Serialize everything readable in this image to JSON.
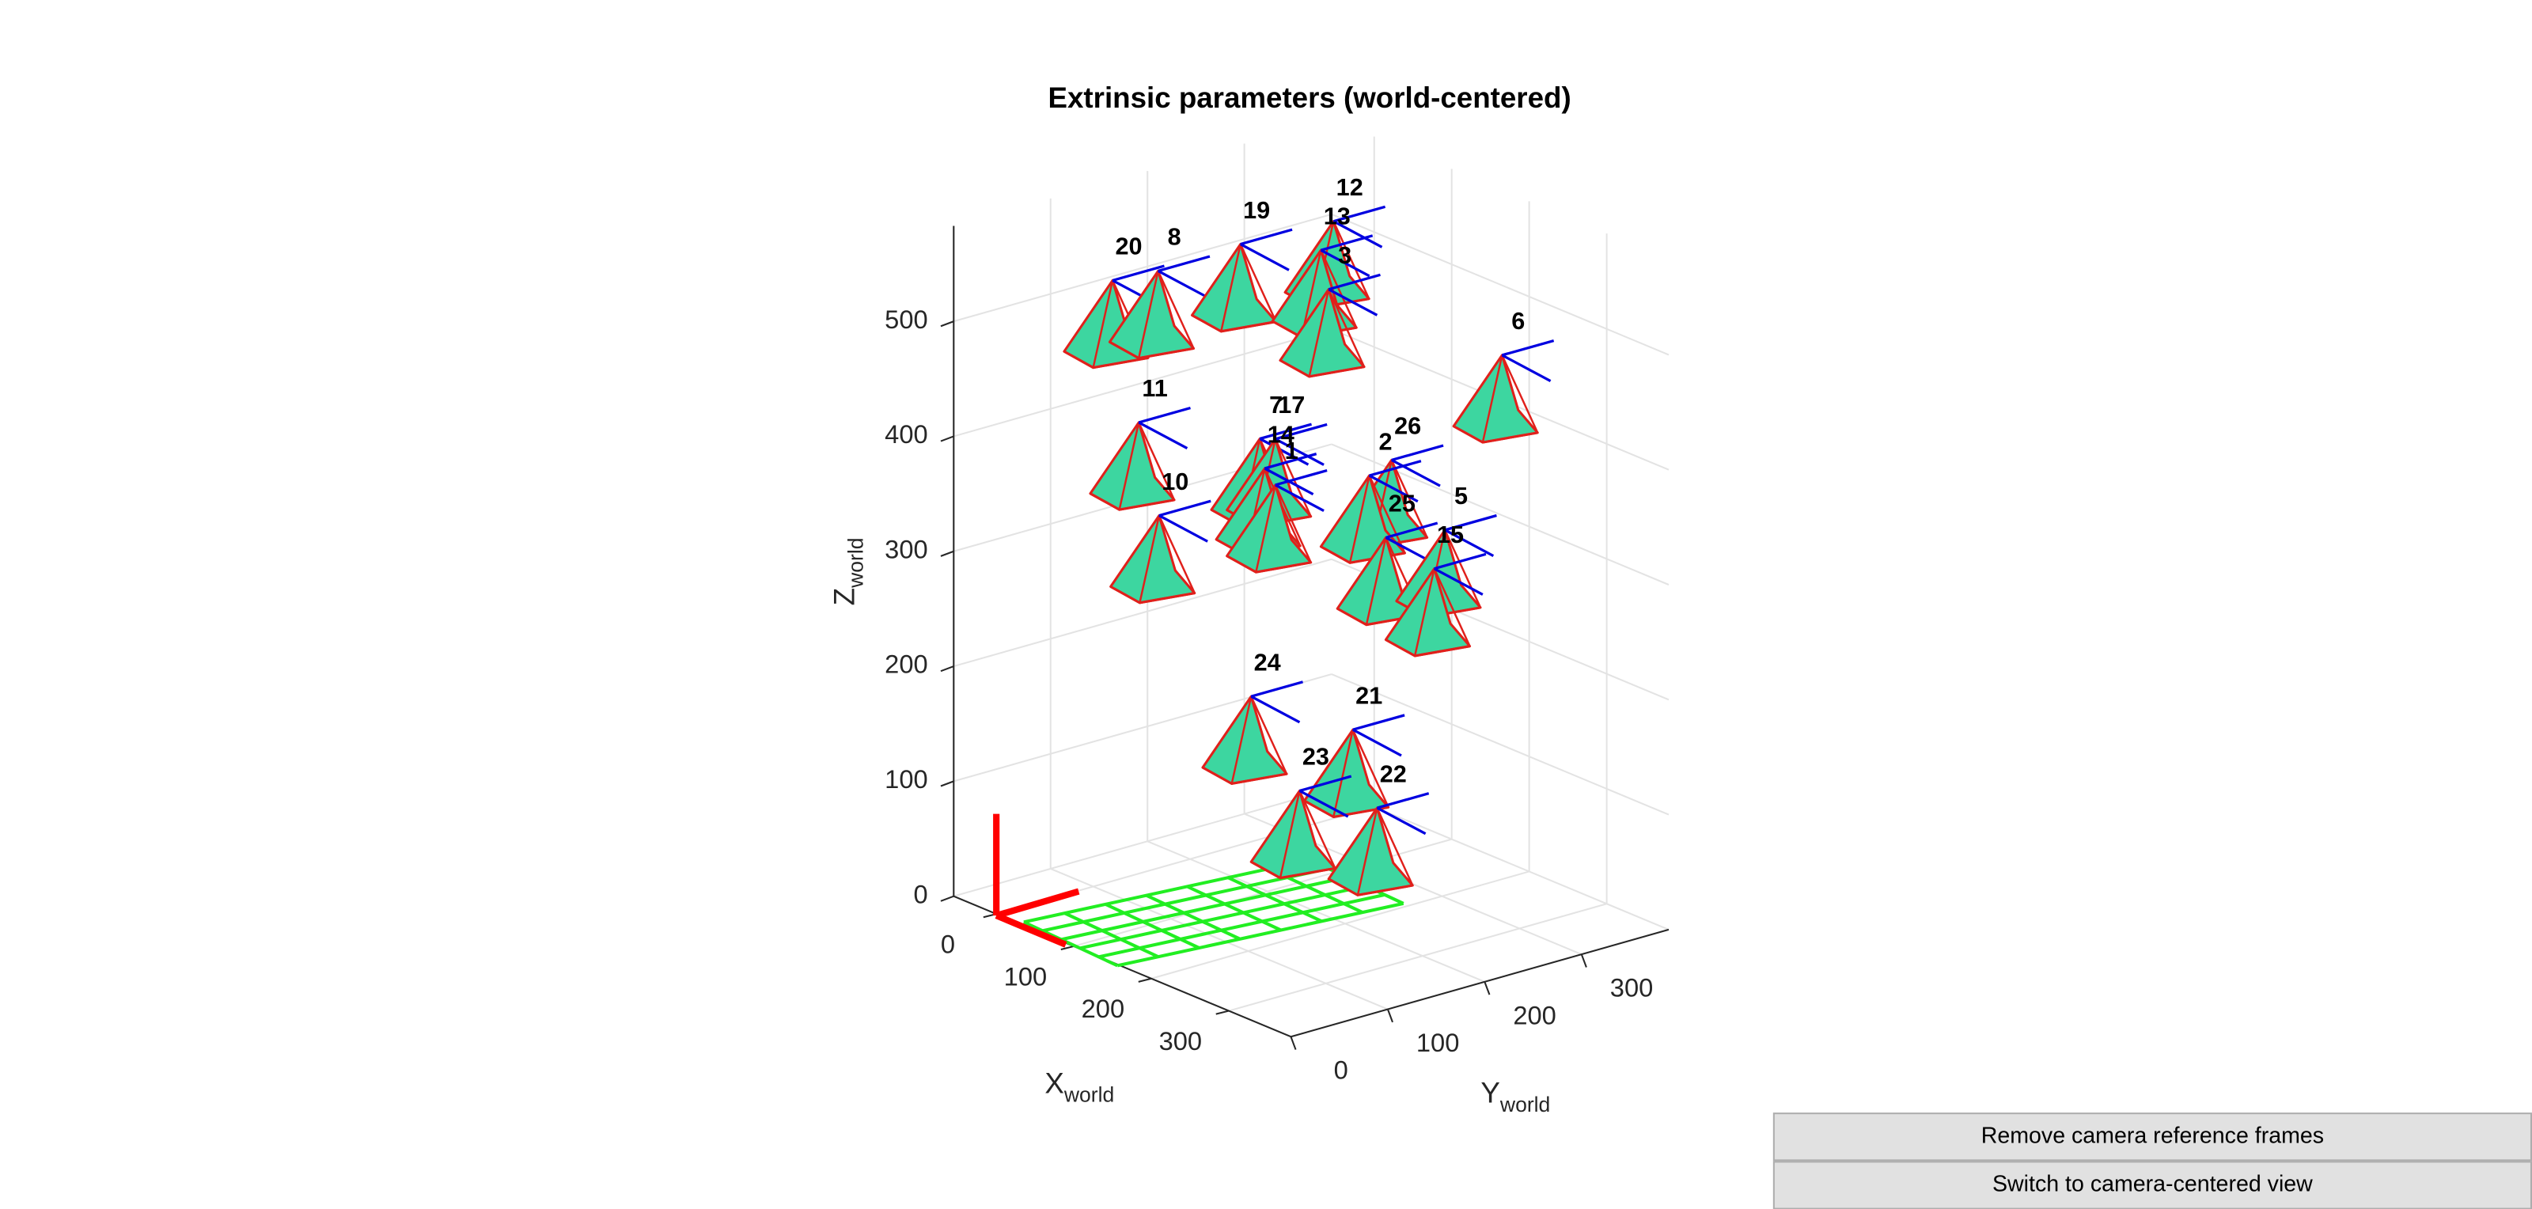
{
  "chart_data": {
    "type": "scatter3d",
    "title": "Extrinsic parameters (world-centered)",
    "xlabel": {
      "text": "X",
      "subscript": "world"
    },
    "ylabel": {
      "text": "Y",
      "subscript": "world"
    },
    "zlabel": {
      "text": "Z",
      "subscript": "world"
    },
    "xlim": [
      -55,
      380
    ],
    "ylim": [
      0,
      390
    ],
    "zlim": [
      0,
      583
    ],
    "xticks": [
      0,
      100,
      200,
      300
    ],
    "yticks": [
      0,
      100,
      200,
      300
    ],
    "zticks": [
      0,
      100,
      200,
      300,
      400,
      500
    ],
    "grid": true,
    "camera_color": "#3dd6a0",
    "edge_color": "#e0201b",
    "frame_color": "#0000e0",
    "cameras": [
      {
        "label": "20",
        "x": 50,
        "y": 80,
        "z": 546
      },
      {
        "label": "8",
        "x": 50,
        "y": 127,
        "z": 543
      },
      {
        "label": "19",
        "x": 50,
        "y": 212,
        "z": 546
      },
      {
        "label": "12",
        "x": 50,
        "y": 308,
        "z": 543
      },
      {
        "label": "13",
        "x": 50,
        "y": 295,
        "z": 521
      },
      {
        "label": "3",
        "x": 50,
        "y": 303,
        "z": 485
      },
      {
        "label": "6",
        "x": 50,
        "y": 482,
        "z": 385
      },
      {
        "label": "11",
        "x": 50,
        "y": 107,
        "z": 416
      },
      {
        "label": "7",
        "x": 50,
        "y": 232,
        "z": 372
      },
      {
        "label": "17",
        "x": 50,
        "y": 248,
        "z": 368
      },
      {
        "label": "14",
        "x": 50,
        "y": 237,
        "z": 345
      },
      {
        "label": "1",
        "x": 50,
        "y": 248,
        "z": 328
      },
      {
        "label": "26",
        "x": 50,
        "y": 368,
        "z": 321
      },
      {
        "label": "2",
        "x": 50,
        "y": 345,
        "z": 313
      },
      {
        "label": "10",
        "x": 50,
        "y": 128,
        "z": 330
      },
      {
        "label": "25",
        "x": 50,
        "y": 362,
        "z": 255
      },
      {
        "label": "5",
        "x": 50,
        "y": 423,
        "z": 247
      },
      {
        "label": "15",
        "x": 50,
        "y": 412,
        "z": 216
      },
      {
        "label": "24",
        "x": 50,
        "y": 223,
        "z": 150
      },
      {
        "label": "21",
        "x": 50,
        "y": 328,
        "z": 96
      },
      {
        "label": "23",
        "x": 50,
        "y": 273,
        "z": 56
      },
      {
        "label": "22",
        "x": 50,
        "y": 353,
        "z": 22
      }
    ]
  },
  "buttons": [
    "Remove camera reference frames",
    "Switch to camera-centered view"
  ]
}
